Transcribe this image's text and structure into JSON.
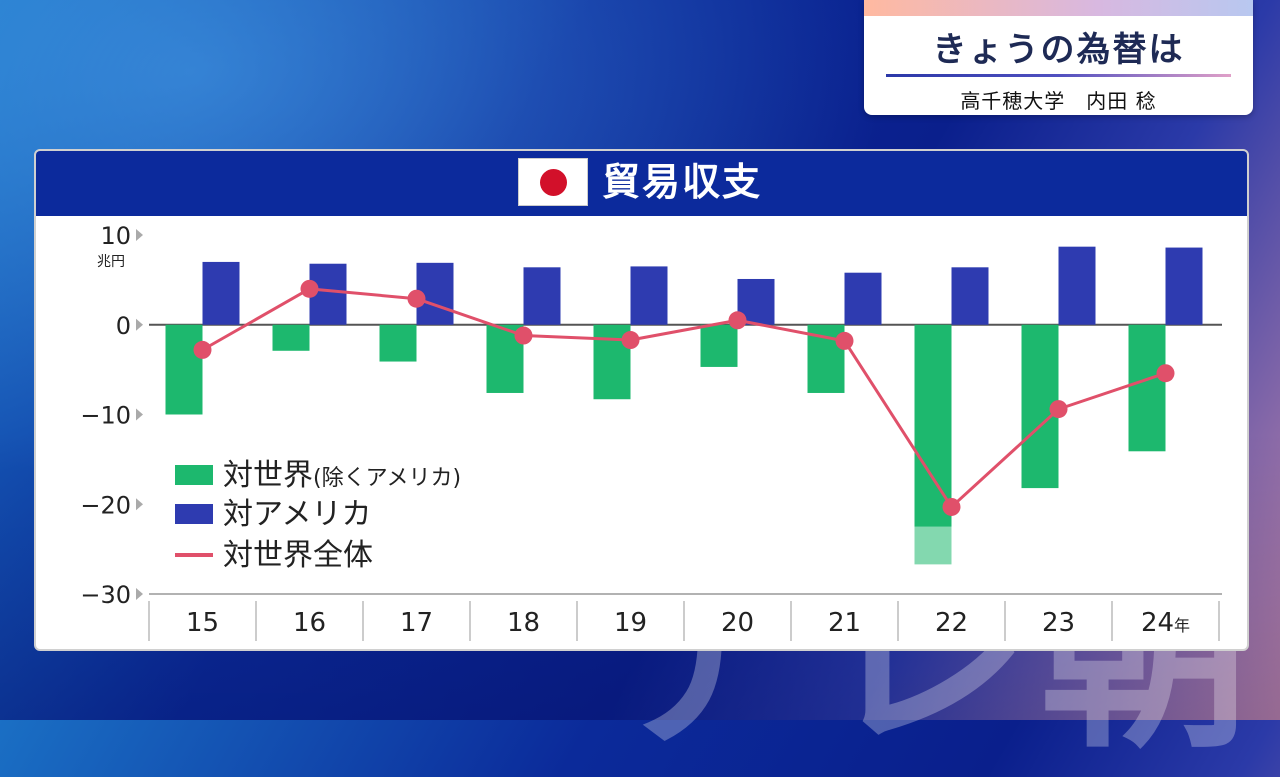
{
  "caption": {
    "title": "きょうの為替は",
    "subtitle": "高千穂大学　内田 稔"
  },
  "chart_data": {
    "type": "bar",
    "title": "貿易収支",
    "unit_label": "兆円",
    "x_suffix": "年",
    "categories": [
      "15",
      "16",
      "17",
      "18",
      "19",
      "20",
      "21",
      "22",
      "23",
      "24"
    ],
    "y_ticks": [
      "10",
      "0",
      "−10",
      "−20",
      "−30"
    ],
    "y_tick_values": [
      10,
      0,
      -10,
      -20,
      -30
    ],
    "ylim": [
      -30,
      10
    ],
    "series": [
      {
        "name": "対世界(除くアメリカ)",
        "type": "bar",
        "color": "#1db86e",
        "values": [
          -10.0,
          -2.9,
          -4.1,
          -7.6,
          -8.3,
          -4.7,
          -7.6,
          -26.7,
          -18.2,
          -14.1
        ]
      },
      {
        "name": "対アメリカ",
        "type": "bar",
        "color": "#2e3bb0",
        "values": [
          7.0,
          6.8,
          6.9,
          6.4,
          6.5,
          5.1,
          5.8,
          6.4,
          8.7,
          8.6
        ]
      },
      {
        "name": "対世界全体",
        "type": "line",
        "color": "#e0506a",
        "values": [
          -2.8,
          4.0,
          2.9,
          -1.2,
          -1.7,
          0.5,
          -1.8,
          -20.3,
          -9.4,
          -5.4
        ]
      }
    ],
    "legend_position": "lower-left"
  },
  "watermark": "テレ朝"
}
